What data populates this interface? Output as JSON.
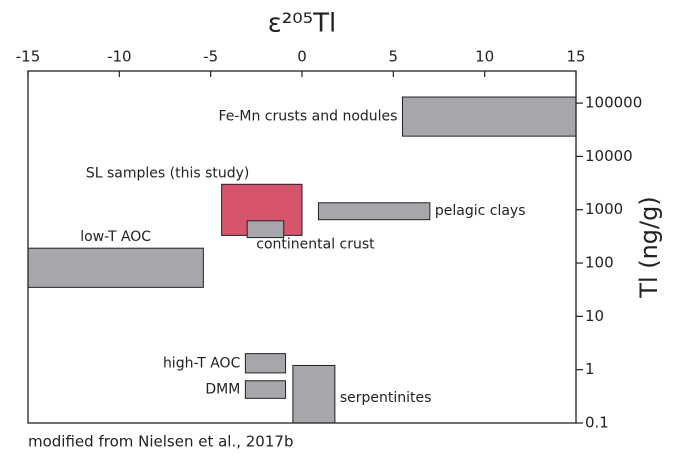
{
  "chart_data": {
    "type": "range",
    "x_label": "ε²⁰⁵Tl",
    "y_label": "Tl (ng/g)",
    "note": "modified from Nielsen et al., 2017b",
    "xlim": [
      -15,
      15
    ],
    "xticks": [
      -15,
      -10,
      -5,
      0,
      5,
      10,
      15
    ],
    "ylim": [
      0.1,
      400000
    ],
    "yticks": [
      0.1,
      1,
      10,
      100,
      1000,
      10000,
      100000
    ],
    "y_scale": "log",
    "items": [
      {
        "label": "Fe-Mn crusts and nodules",
        "x": [
          5.5,
          15
        ],
        "y": [
          24000,
          130000
        ],
        "color": "#a7a7ab"
      },
      {
        "label": "SL samples (this study)",
        "x": [
          -4.4,
          0
        ],
        "y": [
          330,
          3000
        ],
        "color": "#d6546c"
      },
      {
        "label": "continental crust",
        "x": [
          -3,
          -1
        ],
        "y": [
          300,
          620
        ],
        "color": "#a7a7ab"
      },
      {
        "label": "pelagic clays",
        "x": [
          0.9,
          7
        ],
        "y": [
          650,
          1350
        ],
        "color": "#a7a7ab"
      },
      {
        "label": "low-T AOC",
        "x": [
          -15,
          -5.4
        ],
        "y": [
          35,
          190
        ],
        "color": "#a7a7ab"
      },
      {
        "label": "high-T AOC",
        "x": [
          -3.1,
          -0.9
        ],
        "y": [
          0.87,
          2
        ],
        "color": "#a7a7ab"
      },
      {
        "label": "DMM",
        "x": [
          -3.1,
          -0.9
        ],
        "y": [
          0.29,
          0.62
        ],
        "color": "#a7a7ab"
      },
      {
        "label": "serpentinites",
        "x": [
          -0.5,
          1.8
        ],
        "y": [
          0.1,
          1.2
        ],
        "color": "#a7a7ab"
      }
    ]
  }
}
